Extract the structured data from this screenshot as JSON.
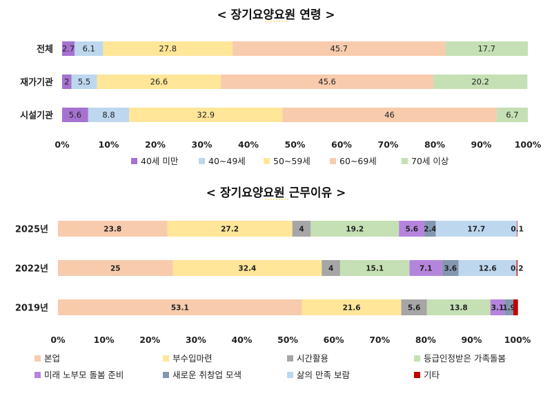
{
  "chart_data": [
    {
      "type": "bar",
      "orientation": "horizontal",
      "stacked": true,
      "title": "< 장기요양요원 연령 >",
      "categories": [
        "전체",
        "재가기관",
        "시설기관"
      ],
      "series": [
        {
          "name": "40세 미만",
          "color": "#a672d0",
          "values": [
            2.7,
            2,
            5.6
          ]
        },
        {
          "name": "40~49세",
          "color": "#bdd7ee",
          "values": [
            6.1,
            5.5,
            8.8
          ]
        },
        {
          "name": "50~59세",
          "color": "#ffe699",
          "values": [
            27.8,
            26.6,
            32.9
          ]
        },
        {
          "name": "60~69세",
          "color": "#f8cbad",
          "values": [
            45.7,
            45.6,
            46
          ]
        },
        {
          "name": "70세 이상",
          "color": "#c5e0b4",
          "values": [
            17.7,
            20.2,
            6.7
          ]
        }
      ],
      "xlim": [
        0,
        100
      ],
      "xticks": [
        "0%",
        "10%",
        "20%",
        "30%",
        "40%",
        "50%",
        "60%",
        "70%",
        "80%",
        "90%",
        "100%"
      ],
      "legend": "bottom",
      "grid": false
    },
    {
      "type": "bar",
      "orientation": "horizontal",
      "stacked": true,
      "title": "< 장기요양요원 근무이유 >",
      "categories": [
        "2025년",
        "2022년",
        "2019년"
      ],
      "series": [
        {
          "name": "본업",
          "color": "#f8cbad",
          "values": [
            23.8,
            25,
            53.1
          ]
        },
        {
          "name": "부수입마련",
          "color": "#ffe699",
          "values": [
            27.2,
            32.4,
            21.6
          ]
        },
        {
          "name": "시간활용",
          "color": "#a6a6a6",
          "values": [
            4,
            4,
            5.6
          ]
        },
        {
          "name": "등급인정받은 가족돌봄",
          "color": "#c5e0b4",
          "values": [
            19.2,
            15.1,
            13.8
          ]
        },
        {
          "name": "미래 노부모 돌봄 준비",
          "color": "#b584dc",
          "values": [
            5.6,
            7.1,
            3.1
          ]
        },
        {
          "name": "새로운 취창업 모색",
          "color": "#8497b0",
          "values": [
            2.4,
            3.6,
            1.9
          ]
        },
        {
          "name": "삶의 만족 보람",
          "color": "#bdd7ee",
          "values": [
            17.7,
            12.6,
            0
          ]
        },
        {
          "name": "기타",
          "color": "#c00000",
          "values": [
            0.1,
            0.2,
            1
          ]
        }
      ],
      "segment_labels": [
        [
          "23.8",
          "27.2",
          "4",
          "19.2",
          "5.6",
          "2.4",
          "17.7",
          "0.1"
        ],
        [
          "25",
          "32.4",
          "4",
          "15.1",
          "7.1",
          "3.6",
          "12.6",
          "0.2"
        ],
        [
          "53.1",
          "21.6",
          "5.6",
          "13.8",
          "3.1",
          "1.9",
          "",
          ""
        ]
      ],
      "xlim": [
        0,
        100
      ],
      "xticks": [
        "0%",
        "10%",
        "20%",
        "30%",
        "40%",
        "50%",
        "60%",
        "70%",
        "80%",
        "90%",
        "100%"
      ],
      "legend": "bottom",
      "grid": false
    }
  ]
}
